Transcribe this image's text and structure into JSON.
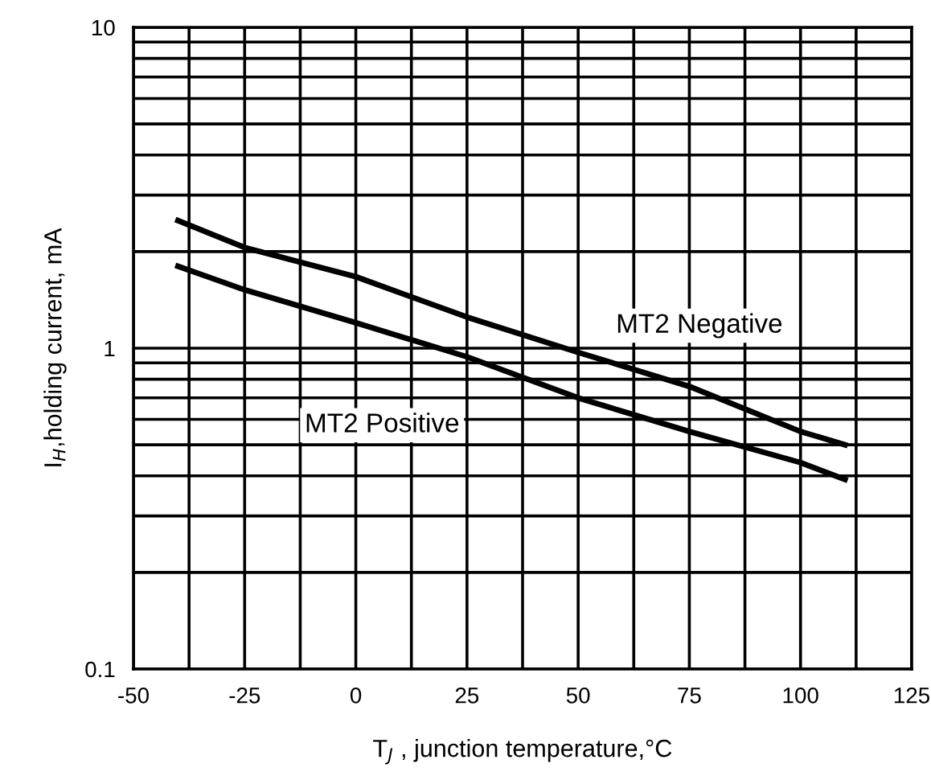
{
  "chart_data": {
    "type": "line",
    "xlabel": "T$_{J}$ , junction temperature,°C",
    "ylabel": "I$_{H}$,holding current, mA",
    "x": [
      -40,
      -25,
      0,
      25,
      50,
      75,
      100,
      110
    ],
    "series": [
      {
        "name": "MT2 Negative",
        "color": "#000000",
        "values": [
          2.5,
          2.06,
          1.67,
          1.25,
          0.97,
          0.76,
          0.55,
          0.5
        ]
      },
      {
        "name": "MT2 Positive",
        "color": "#000000",
        "values": [
          1.8,
          1.52,
          1.2,
          0.94,
          0.7,
          0.55,
          0.44,
          0.39
        ]
      }
    ],
    "log": "y",
    "xlim": [
      -50,
      125
    ],
    "ylim": [
      0.1,
      10
    ],
    "xticks": [
      -50,
      {
        "value": -37.5,
        "label": null
      },
      -25,
      {
        "value": -12.5,
        "label": null
      },
      0,
      {
        "value": 12.5,
        "label": null
      },
      25,
      {
        "value": 37.5,
        "label": null
      },
      50,
      {
        "value": 62.5,
        "label": null
      },
      75,
      {
        "value": 87.5,
        "label": null
      },
      100,
      {
        "value": 112.5,
        "label": null
      },
      125
    ],
    "yticks": [
      0.1,
      {
        "value": 0.2,
        "label": null
      },
      {
        "value": 0.3,
        "label": null
      },
      {
        "value": 0.4,
        "label": null
      },
      {
        "value": 0.5,
        "label": null
      },
      {
        "value": 0.6,
        "label": null
      },
      {
        "value": 0.7,
        "label": null
      },
      {
        "value": 0.8,
        "label": null
      },
      {
        "value": 0.9,
        "label": null
      },
      1,
      {
        "value": 2,
        "label": null
      },
      {
        "value": 3,
        "label": null
      },
      {
        "value": 4,
        "label": null
      },
      {
        "value": 5,
        "label": null
      },
      {
        "value": 6,
        "label": null
      },
      {
        "value": 7,
        "label": null
      },
      {
        "value": 8,
        "label": null
      },
      {
        "value": 9,
        "label": null
      },
      10
    ],
    "grid": true,
    "line_style": "solid",
    "marker": "none",
    "legend": false
  }
}
